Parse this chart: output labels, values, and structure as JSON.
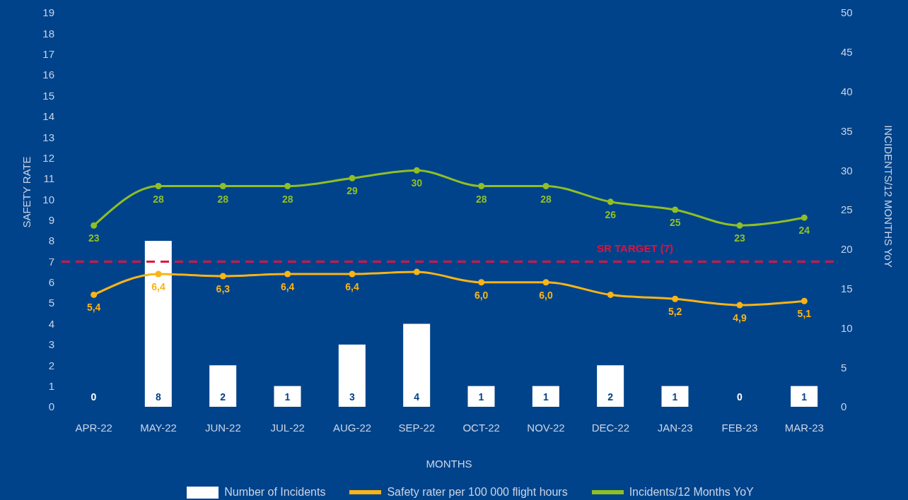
{
  "chart_data": {
    "type": "bar",
    "xlabel": "MONTHS",
    "ylabel": "SAFETY RATE",
    "y2label": "INCIDENTS/12 MONTHS YoY",
    "categories": [
      "APR-22",
      "MAY-22",
      "JUN-22",
      "JUL-22",
      "AUG-22",
      "SEP-22",
      "OCT-22",
      "NOV-22",
      "DEC-22",
      "JAN-23",
      "FEB-23",
      "MAR-23"
    ],
    "series": [
      {
        "name": "Number of Incidents",
        "color": "#ffffff",
        "values": [
          0,
          8,
          2,
          1,
          3,
          4,
          1,
          1,
          2,
          1,
          0,
          1
        ],
        "value_labels": [
          "0",
          "8",
          "2",
          "1",
          "3",
          "4",
          "1",
          "1",
          "2",
          "1",
          "0",
          "1"
        ]
      },
      {
        "name": "Safety rater per 100 000 flight hours",
        "type": "line",
        "color": "#f9b417",
        "values": [
          5.4,
          6.4,
          6.3,
          6.4,
          6.4,
          6.5,
          6.0,
          6.0,
          5.4,
          5.2,
          4.9,
          5.1
        ],
        "value_labels": [
          "5,4",
          "6,4",
          "6,3",
          "6,4",
          "6,4",
          null,
          "6,0",
          "6,0",
          null,
          "5,2",
          "4,9",
          "5,1"
        ]
      },
      {
        "name": "Incidents/12 Months YoY",
        "type": "line",
        "axis": "y2",
        "color": "#8fbf24",
        "values": [
          23,
          28,
          28,
          28,
          29,
          30,
          28,
          28,
          26,
          25,
          23,
          24
        ],
        "value_labels": [
          "23",
          "28",
          "28",
          "28",
          "29",
          "30",
          "28",
          "28",
          "26",
          "25",
          "23",
          "24"
        ]
      }
    ],
    "ylim": [
      0,
      19
    ],
    "yticks": [
      0,
      1,
      2,
      3,
      4,
      5,
      6,
      7,
      8,
      9,
      10,
      11,
      12,
      13,
      14,
      15,
      16,
      17,
      18,
      19
    ],
    "y2lim": [
      0,
      50
    ],
    "y2ticks": [
      0,
      5,
      10,
      15,
      20,
      25,
      30,
      35,
      40,
      45,
      50
    ],
    "ref_lines": [
      {
        "axis": "y",
        "value": 7,
        "label": "SR TARGET (7)",
        "color": "#e2113d",
        "line_style": "dashed"
      }
    ],
    "legend": "bottom",
    "marker": "circle"
  }
}
